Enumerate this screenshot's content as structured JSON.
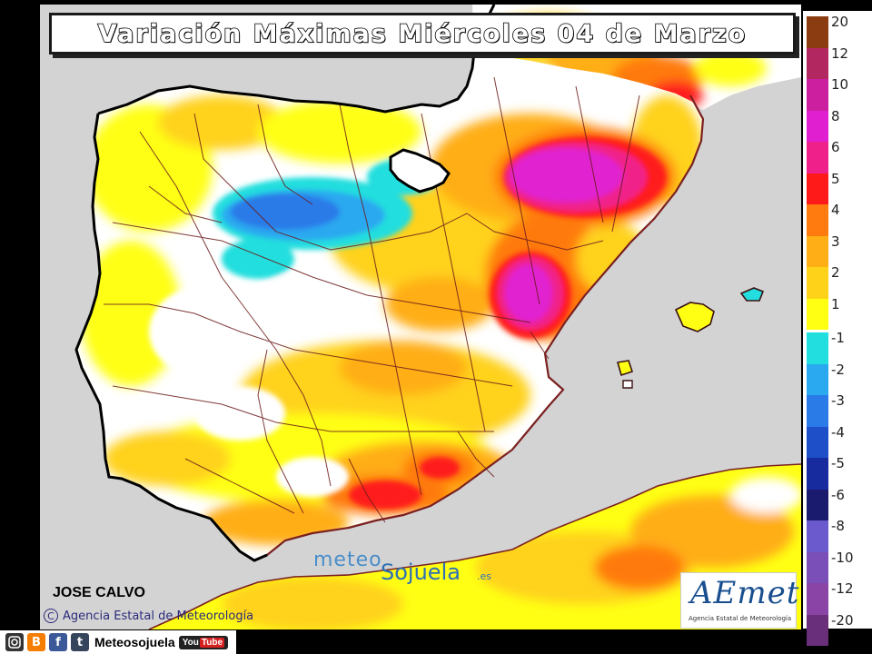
{
  "title": "Variación Máximas Miércoles 04 de Marzo",
  "legend": {
    "positive_steps": [
      {
        "value": "20",
        "color": "#8b3c10"
      },
      {
        "value": "12",
        "color": "#b2275f"
      },
      {
        "value": "10",
        "color": "#cc1fa0"
      },
      {
        "value": "8",
        "color": "#e020d0"
      },
      {
        "value": "6",
        "color": "#f0208a"
      },
      {
        "value": "5",
        "color": "#ff1a1a"
      },
      {
        "value": "4",
        "color": "#ff7a0f"
      },
      {
        "value": "3",
        "color": "#ffae16"
      },
      {
        "value": "2",
        "color": "#ffd21a"
      },
      {
        "value": "1",
        "color": "#ffff14"
      }
    ],
    "negative_steps": [
      {
        "value": "-1",
        "color": "#22dede"
      },
      {
        "value": "-2",
        "color": "#2aa8f0"
      },
      {
        "value": "-3",
        "color": "#2a7ae8"
      },
      {
        "value": "-4",
        "color": "#1e4fc8"
      },
      {
        "value": "-5",
        "color": "#172a9e"
      },
      {
        "value": "-6",
        "color": "#1a1a6e"
      },
      {
        "value": "-8",
        "color": "#6a5acd"
      },
      {
        "value": "-10",
        "color": "#7b4fb8"
      },
      {
        "value": "-12",
        "color": "#8a44a6"
      },
      {
        "value": "-20",
        "color": "#6a2f7a"
      }
    ]
  },
  "author": "JOSE CALVO",
  "agency_credit": "Agencia Estatal de Meteorología",
  "copyright_symbol": "C",
  "watermark": {
    "part1": "meteo",
    "part2": "Sojuela",
    "suffix": ".es"
  },
  "aemet_logo": {
    "word": "AEmet",
    "subtitle": "Agencia Estatal de Meteorología"
  },
  "social": {
    "handle": "Meteosojuela",
    "youtube_a": "You",
    "youtube_b": "Tube",
    "blogger": "B",
    "facebook": "f",
    "tumblr": "t"
  }
}
